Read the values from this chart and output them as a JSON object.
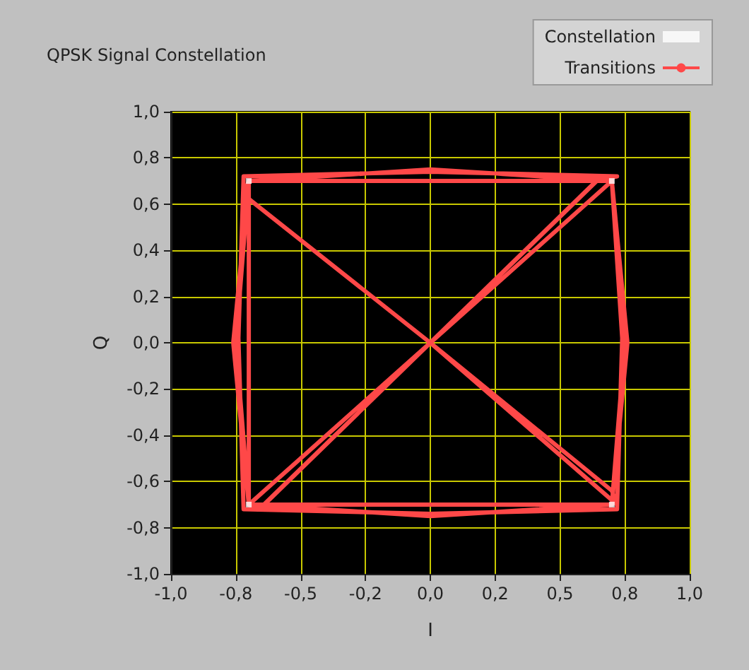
{
  "chart_data": {
    "type": "scatter",
    "title": "QPSK Signal Constellation",
    "xlabel": "I",
    "ylabel": "Q",
    "xlim": [
      -1,
      1
    ],
    "ylim": [
      -1,
      1
    ],
    "xticks": [
      {
        "value": -1,
        "label": "-1,0"
      },
      {
        "value": -0.75,
        "label": "-0,8"
      },
      {
        "value": -0.5,
        "label": "-0,5"
      },
      {
        "value": -0.25,
        "label": "-0,2"
      },
      {
        "value": 0,
        "label": "0,0"
      },
      {
        "value": 0.25,
        "label": "0,2"
      },
      {
        "value": 0.5,
        "label": "0,5"
      },
      {
        "value": 0.75,
        "label": "0,8"
      },
      {
        "value": 1,
        "label": "1,0"
      }
    ],
    "yticks": [
      {
        "value": -1,
        "label": "-1,0"
      },
      {
        "value": -0.8,
        "label": "-0,8"
      },
      {
        "value": -0.6,
        "label": "-0,6"
      },
      {
        "value": -0.4,
        "label": "-0,4"
      },
      {
        "value": -0.2,
        "label": "-0,2"
      },
      {
        "value": 0,
        "label": "0,0"
      },
      {
        "value": 0.2,
        "label": "0,2"
      },
      {
        "value": 0.4,
        "label": "0,4"
      },
      {
        "value": 0.6,
        "label": "0,6"
      },
      {
        "value": 0.8,
        "label": "0,8"
      },
      {
        "value": 1,
        "label": "1,0"
      }
    ],
    "grid": true,
    "legend": "top right",
    "series": [
      {
        "name": "Constellation",
        "color": "#ffffff",
        "marker": "square",
        "x": [
          0.7,
          -0.7,
          -0.7,
          0.7
        ],
        "values": [
          0.7,
          0.7,
          -0.7,
          -0.7
        ]
      },
      {
        "name": "Transitions",
        "type": "line",
        "color": "#ff4848",
        "marker": "none",
        "x": [
          0.7,
          0.75,
          0.7,
          0,
          -0.7,
          -0.75,
          -0.7,
          0,
          0.7,
          0.66,
          0,
          -0.66,
          -0.7,
          0,
          0.7,
          0.74,
          0.72,
          0,
          -0.72,
          -0.74,
          -0.72,
          0,
          0.72,
          0.64,
          0,
          -0.64,
          -0.7,
          0.7,
          0.76,
          0.7,
          -0.7,
          -0.76,
          -0.7,
          0,
          0.7,
          0.72,
          0,
          -0.72,
          -0.7,
          -0.7,
          0.7
        ],
        "values": [
          0.7,
          0,
          -0.7,
          -0.75,
          -0.7,
          0,
          0.7,
          0.75,
          0.7,
          0.72,
          0,
          -0.72,
          -0.7,
          0,
          0.7,
          0.02,
          -0.72,
          -0.74,
          -0.72,
          0.02,
          0.72,
          0.74,
          0.72,
          0.7,
          0,
          -0.7,
          -0.7,
          -0.7,
          0,
          0.7,
          0.7,
          0,
          -0.7,
          0,
          -0.64,
          -0.7,
          0,
          0.64,
          0.7,
          -0.7,
          -0.7
        ]
      }
    ]
  }
}
